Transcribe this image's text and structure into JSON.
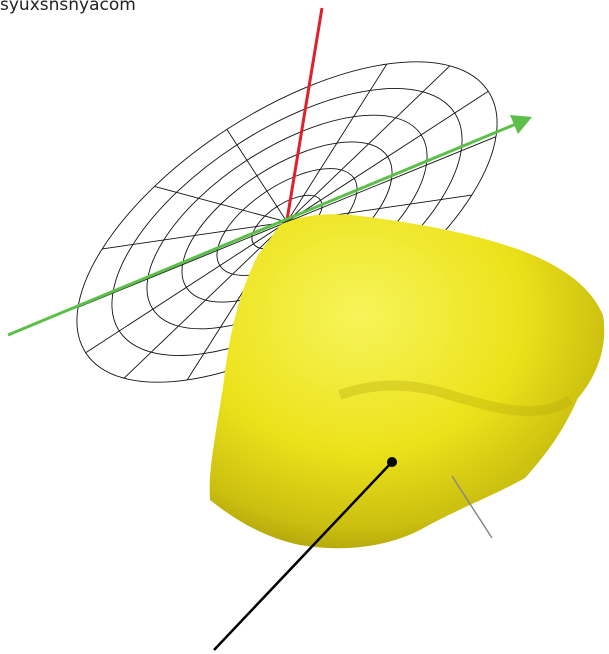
{
  "caption": "syuxsnsnyacom"
}
